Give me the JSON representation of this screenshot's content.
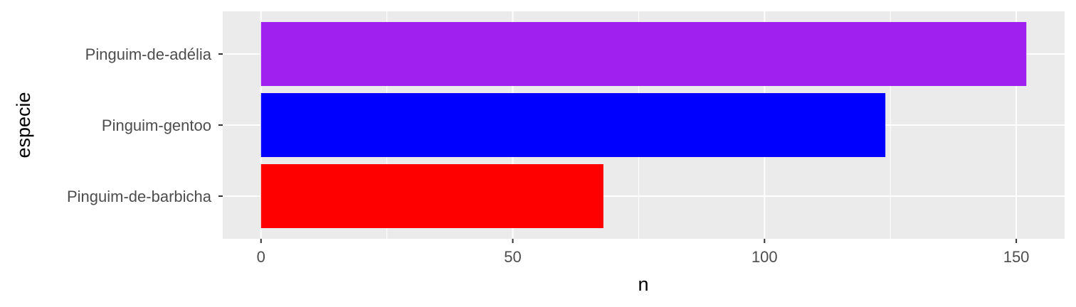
{
  "chart_data": {
    "type": "bar",
    "orientation": "horizontal",
    "xlabel": "n",
    "ylabel": "especie",
    "categories": [
      "Pinguim-de-barbicha",
      "Pinguim-gentoo",
      "Pinguim-de-adélia"
    ],
    "values": [
      68,
      124,
      152
    ],
    "colors": [
      "#ff0000",
      "#0000ff",
      "#a020f0"
    ],
    "xlim": [
      -7.6,
      159.6
    ],
    "xticks": [
      0,
      50,
      100,
      150
    ],
    "xtick_labels": [
      "0",
      "50",
      "100",
      "150"
    ],
    "grid": true,
    "panel_background": "#ebebeb",
    "gridline_color": "#ffffff",
    "legend": "none"
  }
}
